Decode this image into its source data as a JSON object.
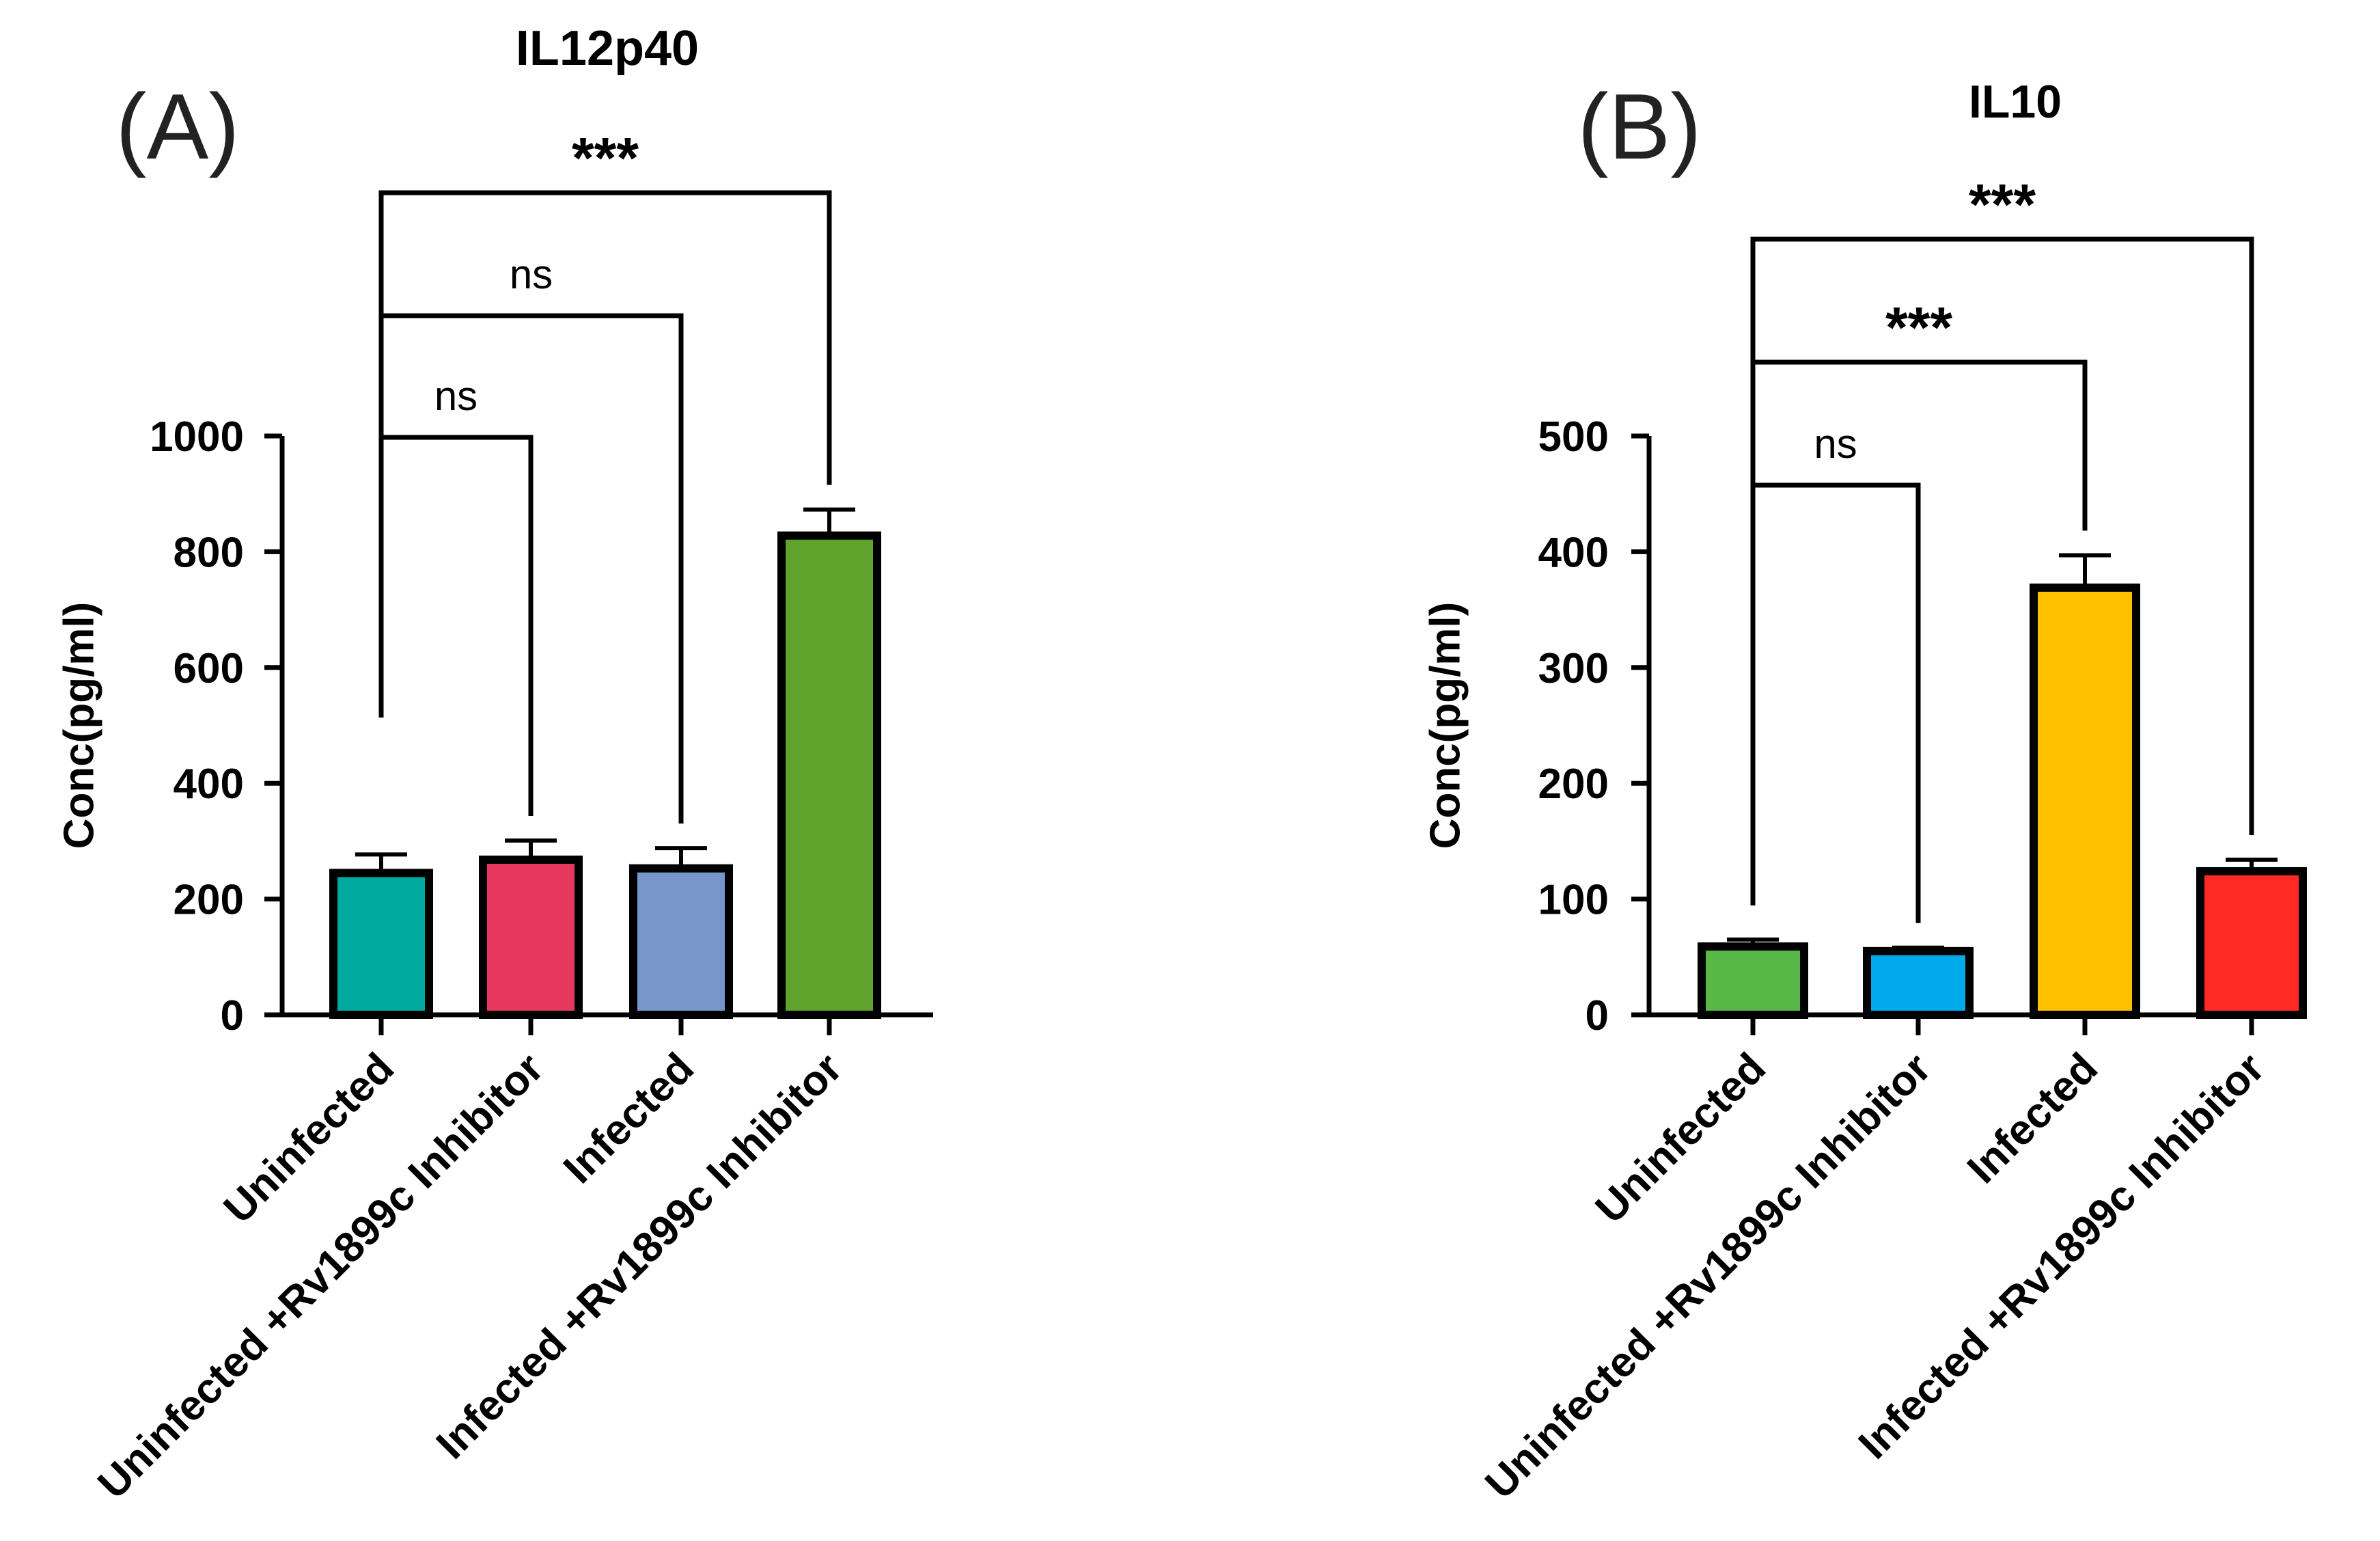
{
  "chart_data": [
    {
      "type": "bar",
      "panel_label": "(A)",
      "title": "IL12p40",
      "xlabel": "",
      "ylabel": "Conc(pg/ml)",
      "ylim": [
        0,
        1000
      ],
      "yticks": [
        0,
        200,
        400,
        600,
        800,
        1000
      ],
      "grid": false,
      "categories": [
        "Uninfected",
        "Uninfected +Rv1899c Inhibitor",
        "Infected",
        "Infected +Rv1899c Inhibitor"
      ],
      "values": [
        245,
        268,
        253,
        828
      ],
      "errors": [
        32,
        33,
        35,
        45
      ],
      "colors": [
        "#00a99d",
        "#e8375f",
        "#7796c9",
        "#5fa22c"
      ],
      "comparisons": [
        {
          "from": 0,
          "to": 1,
          "label": "ns"
        },
        {
          "from": 0,
          "to": 2,
          "label": "ns"
        },
        {
          "from": 0,
          "to": 3,
          "label": "***"
        }
      ]
    },
    {
      "type": "bar",
      "panel_label": "(B)",
      "title": "IL10",
      "xlabel": "",
      "ylabel": "Conc(pg/ml)",
      "ylim": [
        0,
        500
      ],
      "yticks": [
        0,
        100,
        200,
        300,
        400,
        500
      ],
      "grid": false,
      "categories": [
        "Uninfected",
        "Uninfected +Rv1899c Inhibitor",
        "Infected",
        "Infected +Rv1899c Inhibitor"
      ],
      "values": [
        59,
        55,
        369,
        124
      ],
      "errors": [
        6,
        3,
        28,
        10
      ],
      "colors": [
        "#57b847",
        "#00a9e9",
        "#ffc000",
        "#ff2a23"
      ],
      "comparisons": [
        {
          "from": 0,
          "to": 1,
          "label": "ns"
        },
        {
          "from": 0,
          "to": 2,
          "label": "***"
        },
        {
          "from": 0,
          "to": 3,
          "label": "***"
        }
      ]
    }
  ]
}
